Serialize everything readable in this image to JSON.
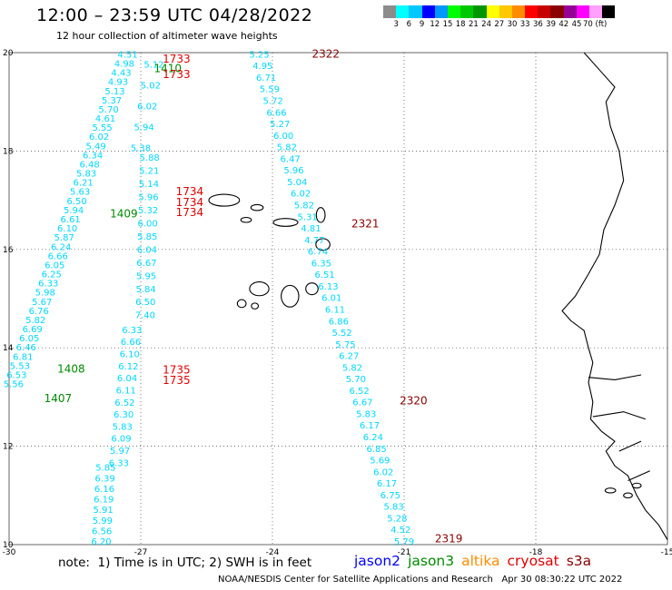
{
  "header": {
    "title": "12:00 – 23:59 UTC 04/28/2022",
    "subtitle": "12 hour collection of altimeter wave heights"
  },
  "legend": {
    "colors": [
      "#8c8c8c",
      "#00ffff",
      "#00c8ff",
      "#0000ff",
      "#0096ff",
      "#00ff00",
      "#00c800",
      "#009600",
      "#ffff00",
      "#ffc800",
      "#ff8c00",
      "#ff0000",
      "#c80000",
      "#8b0000",
      "#960096",
      "#ff00ff",
      "#ffa0ff",
      "#000000"
    ],
    "ticks": [
      "3",
      "6",
      "9",
      "12",
      "15",
      "18",
      "21",
      "24",
      "27",
      "30",
      "33",
      "36",
      "39",
      "42",
      "45",
      "70 (ft)"
    ]
  },
  "map": {
    "lon_min": -30,
    "lon_max": -15,
    "lat_min": 10,
    "lat_max": 20,
    "lon_ticks": [
      "-30",
      "-27",
      "-24",
      "-21",
      "-18",
      "-15"
    ],
    "lat_ticks": [
      "20",
      "18",
      "16",
      "14",
      "12",
      "10"
    ],
    "colors": {
      "swh": "#00d8ff",
      "time_s3a": "#e00000",
      "time_jason3": "#008a00",
      "time_cryosat": "#8b0000",
      "coast": "#000000",
      "grid": "#444444"
    }
  },
  "tracks": [
    {
      "name": "track-a",
      "kind": "s3a",
      "start": [
        -27.3,
        19.9
      ],
      "end": [
        -29.9,
        13.2
      ],
      "values": [
        "4.51",
        "4.98",
        "4.43",
        "4.93",
        "5.13",
        "5.37",
        "5.70",
        "4.61",
        "5.55",
        "6.02",
        "5.49",
        "6.34",
        "6.48",
        "5.83",
        "6.21",
        "5.63",
        "6.50",
        "5.94",
        "6.61",
        "6.10",
        "5.87",
        "6.24",
        "6.66",
        "6.05",
        "6.25",
        "6.33",
        "5.98",
        "5.67",
        "6.76",
        "5.82",
        "6.69",
        "6.05",
        "6.46",
        "6.81",
        "5.53",
        "6.53",
        "5.56"
      ]
    },
    {
      "name": "track-b",
      "kind": "s3a",
      "start": [
        -26.7,
        19.7
      ],
      "end": [
        -27.0,
        18.0
      ],
      "values": [
        "5.12",
        "5.02",
        "6.02",
        "5.94",
        "5.38"
      ]
    },
    {
      "name": "track-c",
      "kind": "s3a",
      "start": [
        -26.8,
        17.8
      ],
      "end": [
        -26.9,
        14.6
      ],
      "values": [
        "5.88",
        "5.21",
        "5.14",
        "5.96",
        "5.32",
        "6.00",
        "5.85",
        "6.04",
        "6.67",
        "5.95",
        "5.84",
        "6.50",
        "7.40"
      ]
    },
    {
      "name": "track-d",
      "kind": "s3a",
      "start": [
        -27.2,
        14.3
      ],
      "end": [
        -27.5,
        11.6
      ],
      "values": [
        "6.33",
        "6.66",
        "6.10",
        "6.12",
        "6.04",
        "6.11",
        "6.52",
        "6.30",
        "5.83",
        "6.09",
        "5.97",
        "6.33"
      ]
    },
    {
      "name": "track-e",
      "kind": "s3a",
      "start": [
        -27.8,
        11.5
      ],
      "end": [
        -27.9,
        10.0
      ],
      "values": [
        "5.85",
        "6.39",
        "6.16",
        "6.19",
        "5.91",
        "5.99",
        "6.56",
        "6.20"
      ]
    },
    {
      "name": "track-f",
      "kind": "jason3",
      "start": [
        -24.3,
        19.9
      ],
      "end": [
        -21.0,
        10.0
      ],
      "values": [
        "5.25",
        "4.95",
        "6.71",
        "5.59",
        "5.72",
        "6.66",
        "5.27",
        "6.00",
        "5.82",
        "6.47",
        "5.96",
        "5.04",
        "6.02",
        "5.82",
        "5.31",
        "4.81",
        "4.77",
        "6.74",
        "6.35",
        "6.51",
        "6.13",
        "6.01",
        "6.11",
        "6.86",
        "5.52",
        "5.75",
        "6.27",
        "5.82",
        "5.70",
        "6.52",
        "6.67",
        "5.83",
        "6.17",
        "6.24",
        "6.85",
        "5.69",
        "6.02",
        "6.17",
        "6.75",
        "5.83",
        "5.28",
        "4.52",
        "5.79"
      ]
    }
  ],
  "time_labels": [
    {
      "text": "1733",
      "kind": "s3a",
      "at": [
        -26.5,
        19.8
      ]
    },
    {
      "text": "1410",
      "kind": "jason3",
      "at": [
        -26.7,
        19.6
      ]
    },
    {
      "text": "1733",
      "kind": "s3a",
      "at": [
        -26.5,
        19.48
      ]
    },
    {
      "text": "1734",
      "kind": "s3a",
      "at": [
        -26.2,
        17.1
      ]
    },
    {
      "text": "1734",
      "kind": "s3a",
      "at": [
        -26.2,
        16.88
      ]
    },
    {
      "text": "1409",
      "kind": "jason3",
      "at": [
        -27.7,
        16.65
      ]
    },
    {
      "text": "1734",
      "kind": "s3a",
      "at": [
        -26.2,
        16.68
      ]
    },
    {
      "text": "1408",
      "kind": "jason3",
      "at": [
        -28.9,
        13.5
      ]
    },
    {
      "text": "1735",
      "kind": "s3a",
      "at": [
        -26.5,
        13.48
      ]
    },
    {
      "text": "1735",
      "kind": "s3a",
      "at": [
        -26.5,
        13.27
      ]
    },
    {
      "text": "1407",
      "kind": "jason3",
      "at": [
        -29.2,
        12.9
      ]
    },
    {
      "text": "2322",
      "kind": "cryosat",
      "at": [
        -23.1,
        19.9
      ]
    },
    {
      "text": "2321",
      "kind": "cryosat",
      "at": [
        -22.2,
        16.45
      ]
    },
    {
      "text": "2320",
      "kind": "cryosat",
      "at": [
        -21.1,
        12.85
      ]
    },
    {
      "text": "2319",
      "kind": "cryosat",
      "at": [
        -20.3,
        10.05
      ]
    }
  ],
  "footer": {
    "note": "note:  1) Time is in UTC; 2) SWH is in feet",
    "satellites": [
      {
        "label": "jason2",
        "color": "#0000ff"
      },
      {
        "label": "jason3",
        "color": "#008a00"
      },
      {
        "label": "altika",
        "color": "#ff8c00"
      },
      {
        "label": "cryosat",
        "color": "#e00000"
      },
      {
        "label": "s3a",
        "color": "#8b0000"
      }
    ],
    "credit": "NOAA/NESDIS Center for Satellite Applications and Research   Apr 30 08:30:22 UTC 2022"
  }
}
